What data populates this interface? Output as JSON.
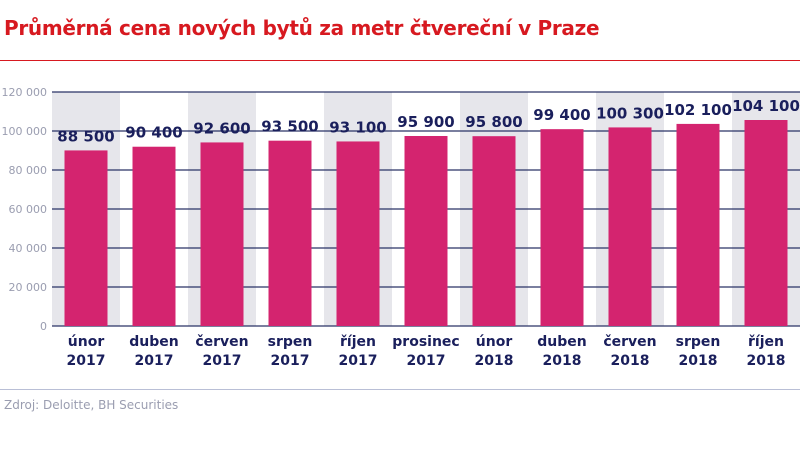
{
  "title": "Průměrná cena nových bytů za metr čtvereční v Praze",
  "source": "Zdroj: Deloitte, BH Securities",
  "chart_data": {
    "type": "bar",
    "categories": [
      [
        "únor",
        "2017"
      ],
      [
        "duben",
        "2017"
      ],
      [
        "červen",
        "2017"
      ],
      [
        "srpen",
        "2017"
      ],
      [
        "říjen",
        "2017"
      ],
      [
        "prosinec",
        "2017"
      ],
      [
        "únor",
        "2018"
      ],
      [
        "duben",
        "2018"
      ],
      [
        "červen",
        "2018"
      ],
      [
        "srpen",
        "2018"
      ],
      [
        "říjen",
        "2018"
      ]
    ],
    "values": [
      88500,
      90400,
      92600,
      93500,
      93100,
      95900,
      95800,
      99400,
      100300,
      102100,
      104100
    ],
    "data_labels": [
      "88 500",
      "90 400",
      "92 600",
      "93 500",
      "93 100",
      "95 900",
      "95 800",
      "99 400",
      "100 300",
      "102 100",
      "104 100"
    ],
    "ylim": [
      0,
      120000
    ],
    "yticks": [
      0,
      20000,
      40000,
      60000,
      80000,
      100000,
      120000
    ],
    "ytick_labels": [
      "0",
      "20 000",
      "40 000",
      "60 000",
      "80 000",
      "100 000",
      "120 000"
    ],
    "grid": true,
    "colors": {
      "bar": "#d4246f",
      "label": "#1a1f5c",
      "grid": "#2a3366",
      "band": "#e6e6eb",
      "title": "#d71920"
    }
  }
}
